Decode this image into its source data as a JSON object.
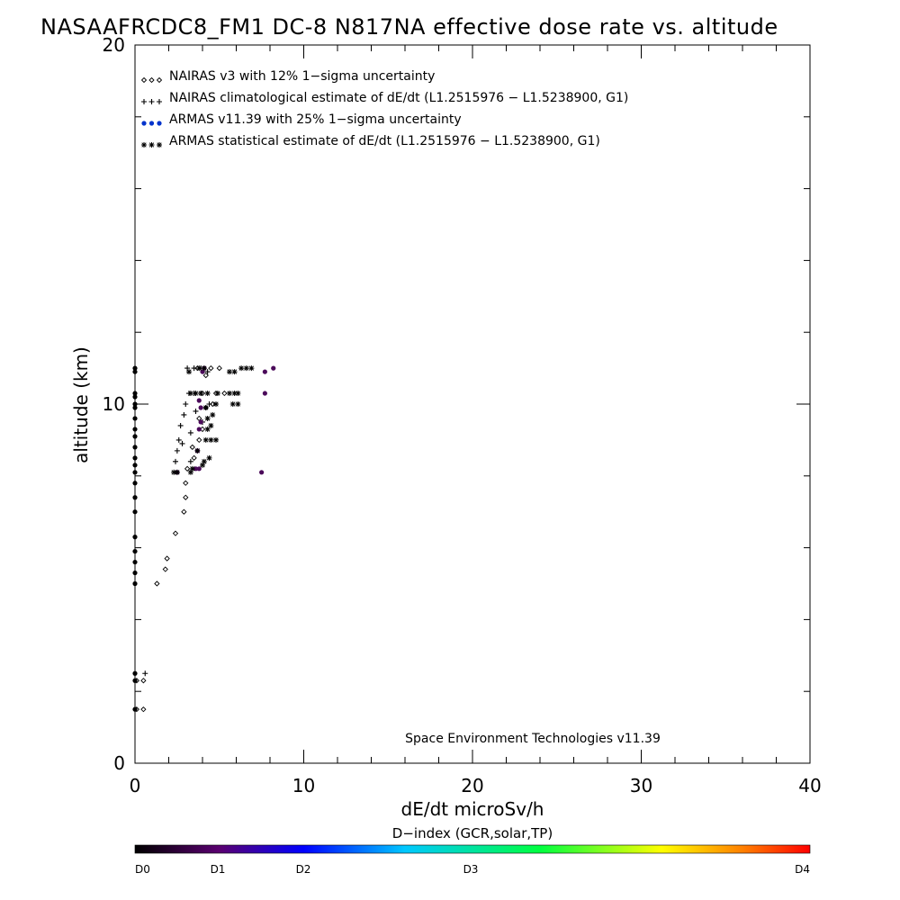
{
  "chart_data": {
    "type": "scatter",
    "title": "NASAAFRCDC8_FM1 DC-8   N817NA effective dose rate vs. altitude",
    "xlabel": "dE/dt microSv/h",
    "ylabel": "altitude (km)",
    "xlim": [
      0,
      40
    ],
    "ylim": [
      0,
      20
    ],
    "x_ticks": [
      "0",
      "10",
      "20",
      "30",
      "40"
    ],
    "y_ticks": [
      "0",
      "10",
      "20"
    ],
    "grid": false,
    "legend_position": "top-left",
    "credit": "Space Environment Technologies v11.39",
    "colorbar": {
      "title": "D−index (GCR,solar,TP)",
      "labels": [
        {
          "text": "D0",
          "value": 0
        },
        {
          "text": "D1",
          "value": 1
        },
        {
          "text": "D2",
          "value": 2
        },
        {
          "text": "D3",
          "value": 3
        },
        {
          "text": "D4",
          "value": 4
        }
      ],
      "colors": [
        "#000000",
        "#5a0070",
        "#0000ff",
        "#00c8ff",
        "#00ff40",
        "#ffff00",
        "#ff8000",
        "#ff0000"
      ]
    },
    "series": [
      {
        "name": "NAIRAS v3 with 12% 1−sigma uncertainty",
        "marker": "diamond",
        "color": "#000000",
        "points": [
          [
            0.1,
            1.5
          ],
          [
            0.5,
            1.5
          ],
          [
            0.5,
            2.3
          ],
          [
            0.1,
            2.3
          ],
          [
            1.3,
            5.0
          ],
          [
            1.8,
            5.4
          ],
          [
            1.9,
            5.7
          ],
          [
            2.4,
            6.4
          ],
          [
            2.9,
            7.0
          ],
          [
            3.0,
            7.4
          ],
          [
            3.0,
            7.8
          ],
          [
            3.1,
            8.2
          ],
          [
            3.5,
            8.5
          ],
          [
            3.4,
            8.8
          ],
          [
            3.8,
            9.0
          ],
          [
            4.0,
            9.3
          ],
          [
            3.8,
            9.6
          ],
          [
            4.2,
            9.9
          ],
          [
            4.6,
            10.0
          ],
          [
            4.8,
            10.3
          ],
          [
            5.3,
            10.3
          ],
          [
            4.0,
            10.3
          ],
          [
            4.5,
            11.0
          ],
          [
            5.0,
            11.0
          ],
          [
            3.7,
            11.0
          ],
          [
            4.2,
            10.8
          ]
        ]
      },
      {
        "name": "NAIRAS climatological estimate of dE/dt (L1.2515976 − L1.5238900, G1)",
        "marker": "plus",
        "color": "#000000",
        "points": [
          [
            0.6,
            2.5
          ],
          [
            2.4,
            8.4
          ],
          [
            2.5,
            8.7
          ],
          [
            2.6,
            9.0
          ],
          [
            2.7,
            9.4
          ],
          [
            2.9,
            9.7
          ],
          [
            3.0,
            10.0
          ],
          [
            3.2,
            10.3
          ],
          [
            3.5,
            10.3
          ],
          [
            3.9,
            10.3
          ],
          [
            3.1,
            11.0
          ],
          [
            3.5,
            11.0
          ],
          [
            3.9,
            11.0
          ],
          [
            4.3,
            10.9
          ],
          [
            2.8,
            8.9
          ],
          [
            3.3,
            9.2
          ],
          [
            4.0,
            9.5
          ],
          [
            3.6,
            9.8
          ],
          [
            4.4,
            10.0
          ],
          [
            3.3,
            8.4
          ]
        ]
      },
      {
        "name": "ARMAS v11.39 with 25% 1−sigma uncertainty",
        "marker": "dot",
        "color": "#0033cc",
        "points": [
          [
            0.0,
            1.5
          ],
          [
            0.0,
            2.3
          ],
          [
            0.0,
            2.5
          ],
          [
            0.0,
            5.0
          ],
          [
            0.0,
            5.3
          ],
          [
            0.0,
            5.6
          ],
          [
            0.0,
            5.9
          ],
          [
            0.0,
            6.3
          ],
          [
            0.0,
            7.0
          ],
          [
            0.0,
            7.4
          ],
          [
            0.0,
            7.8
          ],
          [
            0.0,
            8.1
          ],
          [
            0.0,
            8.3
          ],
          [
            0.0,
            8.5
          ],
          [
            0.0,
            8.8
          ],
          [
            0.0,
            9.1
          ],
          [
            0.0,
            9.3
          ],
          [
            0.0,
            9.6
          ],
          [
            0.0,
            9.9
          ],
          [
            0.0,
            10.0
          ],
          [
            0.0,
            10.2
          ],
          [
            0.0,
            10.3
          ],
          [
            0.0,
            10.9
          ],
          [
            0.0,
            11.0
          ],
          [
            2.5,
            8.1
          ],
          [
            3.6,
            8.2
          ],
          [
            3.8,
            8.2
          ],
          [
            3.7,
            8.7
          ],
          [
            3.8,
            9.3
          ],
          [
            3.9,
            9.5
          ],
          [
            3.9,
            9.9
          ],
          [
            3.8,
            10.1
          ],
          [
            4.0,
            10.9
          ],
          [
            4.1,
            11.0
          ],
          [
            7.5,
            8.1
          ],
          [
            7.7,
            10.3
          ],
          [
            7.7,
            10.9
          ],
          [
            8.2,
            11.0
          ]
        ]
      },
      {
        "name": "ARMAS statistical estimate of dE/dt (L1.2515976 − L1.5238900, G1)",
        "marker": "asterisk",
        "color": "#000000",
        "points": [
          [
            2.3,
            8.1
          ],
          [
            2.5,
            8.1
          ],
          [
            3.3,
            8.1
          ],
          [
            3.4,
            8.2
          ],
          [
            4.0,
            8.3
          ],
          [
            4.1,
            8.4
          ],
          [
            4.4,
            8.5
          ],
          [
            3.7,
            8.7
          ],
          [
            4.2,
            9.0
          ],
          [
            4.5,
            9.0
          ],
          [
            4.8,
            9.0
          ],
          [
            4.3,
            9.3
          ],
          [
            4.5,
            9.4
          ],
          [
            4.3,
            9.6
          ],
          [
            4.6,
            9.7
          ],
          [
            4.2,
            9.9
          ],
          [
            4.8,
            10.0
          ],
          [
            5.8,
            10.0
          ],
          [
            6.1,
            10.0
          ],
          [
            3.3,
            10.3
          ],
          [
            3.6,
            10.3
          ],
          [
            3.9,
            10.3
          ],
          [
            4.3,
            10.3
          ],
          [
            4.9,
            10.3
          ],
          [
            5.6,
            10.3
          ],
          [
            5.9,
            10.3
          ],
          [
            6.1,
            10.3
          ],
          [
            3.2,
            10.9
          ],
          [
            3.8,
            11.0
          ],
          [
            4.1,
            11.0
          ],
          [
            5.6,
            10.9
          ],
          [
            5.9,
            10.9
          ],
          [
            6.3,
            11.0
          ],
          [
            6.6,
            11.0
          ],
          [
            6.9,
            11.0
          ]
        ]
      }
    ]
  }
}
